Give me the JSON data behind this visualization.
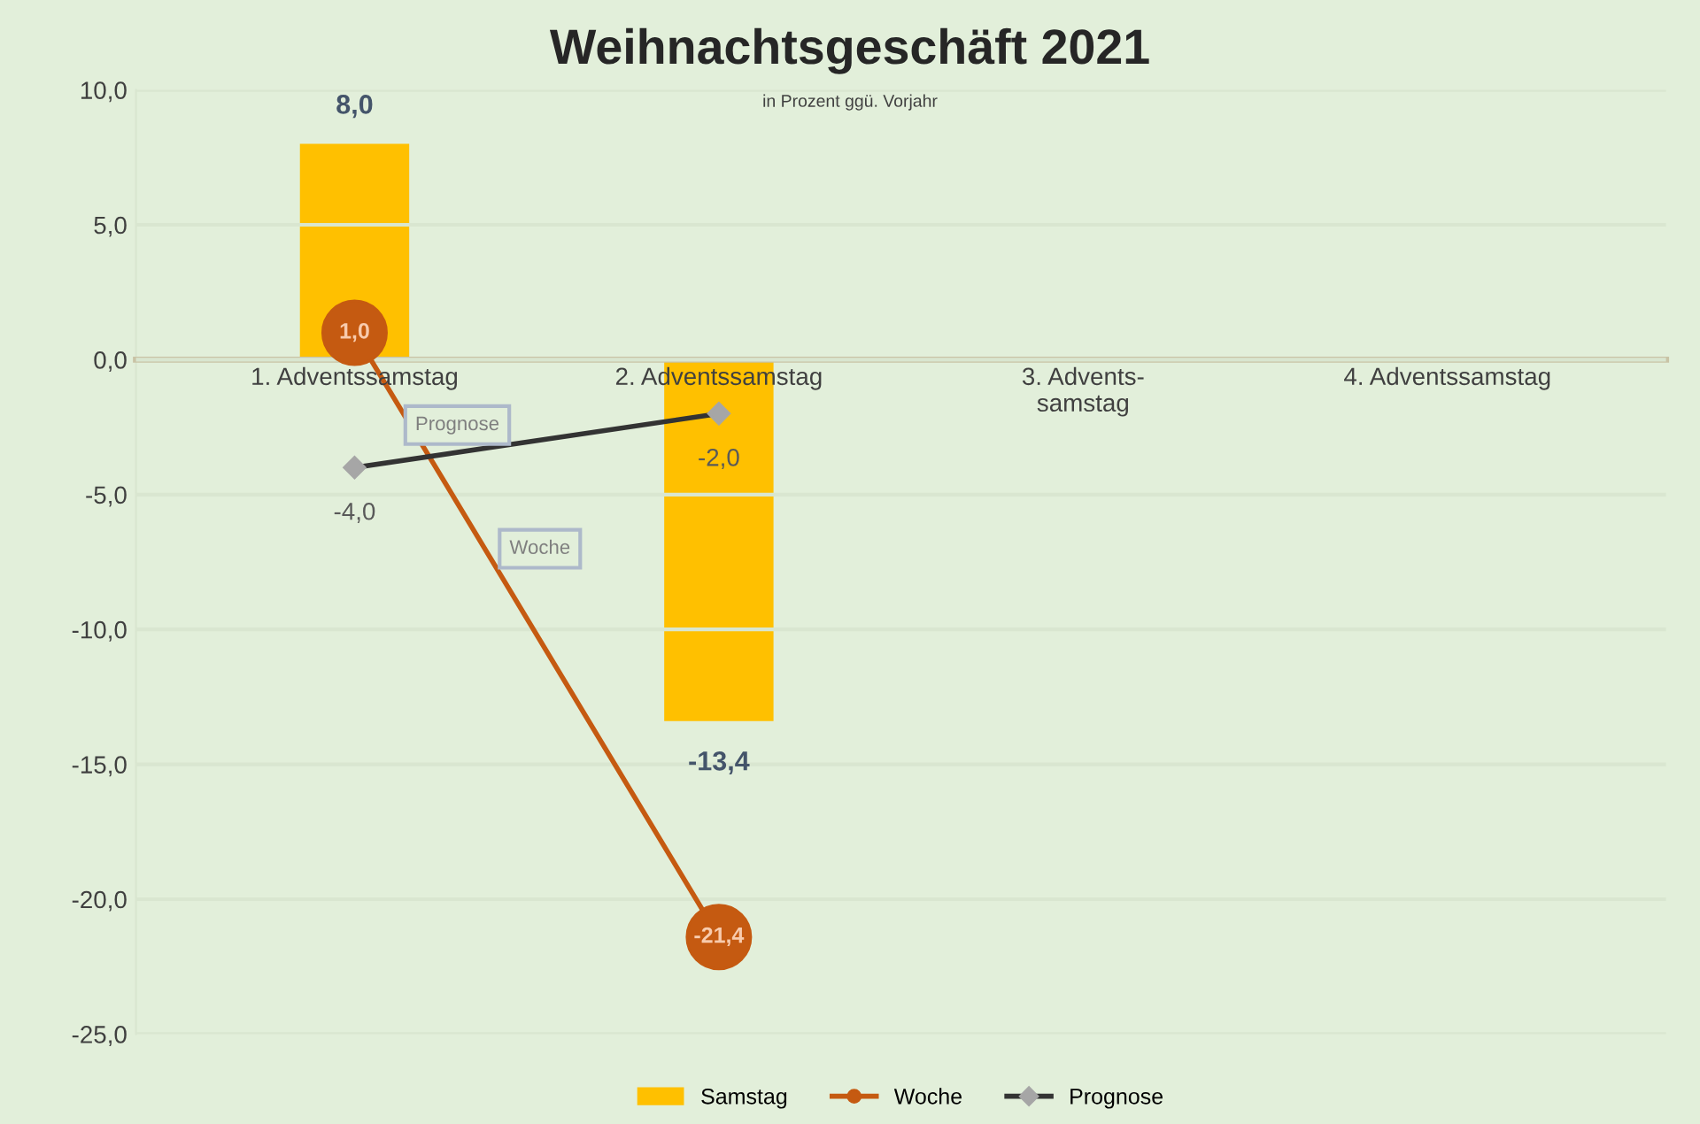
{
  "chart_data": {
    "type": "bar",
    "title": "Weihnachtsgeschäft 2021",
    "subtitle": "in Prozent ggü. Vorjahr",
    "categories": [
      "1. Adventssamstag",
      "2. Adventssamstag",
      "3. Advents-\nsamstag",
      "4. Adventssamstag"
    ],
    "series": [
      {
        "name": "Samstag",
        "color": "#ffc000",
        "values": [
          8.0,
          -13.4,
          null,
          null
        ],
        "value_labels": [
          "8,0",
          "-13,4",
          null,
          null
        ]
      },
      {
        "name": "Woche",
        "type": "line",
        "color": "#c55a11",
        "marker": "circle",
        "values": [
          1.0,
          -21.4,
          null,
          null
        ],
        "value_labels": [
          "1,0",
          "-21,4",
          null,
          null
        ]
      },
      {
        "name": "Prognose",
        "type": "line",
        "color": "#333333",
        "marker": "diamond",
        "values": [
          -4.0,
          -2.0,
          null,
          null
        ],
        "value_labels": [
          "-4,0",
          "-2,0",
          null,
          null
        ]
      }
    ],
    "annotations": [
      "Prognose",
      "Woche"
    ],
    "ylim": [
      -25,
      10
    ],
    "yticks": [
      {
        "value": 10,
        "label": "10,0"
      },
      {
        "value": 5,
        "label": "5,0"
      },
      {
        "value": 0,
        "label": "0,0"
      },
      {
        "value": -5,
        "label": "-5,0"
      },
      {
        "value": -10,
        "label": "-10,0"
      },
      {
        "value": -15,
        "label": "-15,0"
      },
      {
        "value": -20,
        "label": "-20,0"
      },
      {
        "value": -25,
        "label": "-25,0"
      }
    ],
    "grid": "y",
    "legend": "bottom"
  }
}
